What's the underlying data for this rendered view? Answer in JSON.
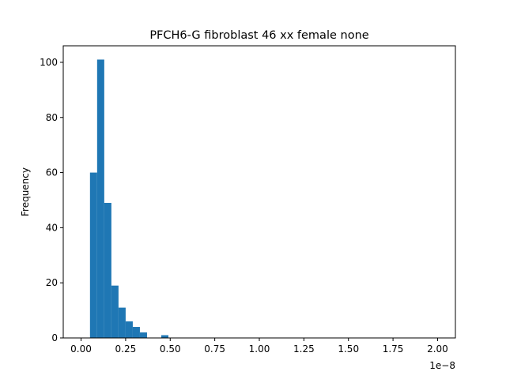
{
  "chart_data": {
    "type": "bar",
    "title": "PFCH6-G fibroblast 46 xx female none",
    "xlabel": "",
    "ylabel": "Frequency",
    "x_scale_label": "1e−8",
    "x_tick_labels": [
      "0.00",
      "0.25",
      "0.50",
      "0.75",
      "1.00",
      "1.25",
      "1.50",
      "1.75",
      "2.00"
    ],
    "y_tick_labels": [
      "0",
      "20",
      "40",
      "60",
      "80",
      "100"
    ],
    "xlim": [
      -0.1,
      2.1
    ],
    "ylim": [
      0,
      106
    ],
    "x_ticks": [
      0,
      0.25,
      0.5,
      0.75,
      1.0,
      1.25,
      1.5,
      1.75,
      2.0
    ],
    "y_ticks": [
      0,
      20,
      40,
      60,
      80,
      100
    ],
    "bins": {
      "start": 0.05,
      "width": 0.04,
      "counts": [
        60,
        101,
        49,
        19,
        11,
        6,
        4,
        2,
        0,
        0,
        1
      ]
    },
    "bar_color": "#1f77b4",
    "grid": false
  }
}
